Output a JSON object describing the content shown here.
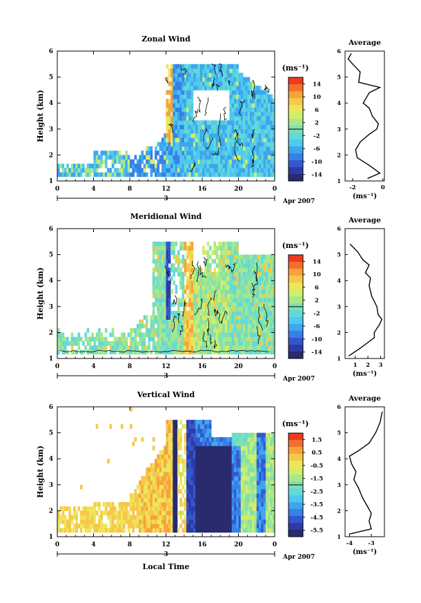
{
  "date_label": "Apr 2007",
  "date_axis_value": "3",
  "xlabel": "Local Time",
  "colorbar_unit": "(ms⁻¹)",
  "profile_title": "Average",
  "profile_unit": "(ms⁻¹)",
  "chart_data": [
    {
      "type": "heatmap",
      "title": "Zonal Wind",
      "ylabel": "Height (km)",
      "xlim": [
        0,
        24
      ],
      "ylim": [
        1,
        6
      ],
      "x_ticks": [
        "0",
        "4",
        "8",
        "12",
        "16",
        "20",
        "0"
      ],
      "y_ticks": [
        "1",
        "2",
        "3",
        "4",
        "5",
        "6"
      ],
      "colorbar": {
        "ticks": [
          "14",
          "10",
          "6",
          "2",
          "-2",
          "-6",
          "-10",
          "-14"
        ],
        "colors": [
          "#ee3b1f",
          "#f36f2c",
          "#f7a23a",
          "#f6c84b",
          "#eee55a",
          "#d2ed6a",
          "#a6e88a",
          "#7fe0b3",
          "#62d9d9",
          "#4fc8ee",
          "#3ea6ee",
          "#3780e6",
          "#3457cf",
          "#2f3aa4",
          "#2a2a6e"
        ]
      },
      "profile": {
        "xlim": [
          -2.5,
          0.1
        ],
        "x_ticks": [
          "-2",
          "0"
        ],
        "points": [
          [
            -1.0,
            1.1
          ],
          [
            -0.2,
            1.3
          ],
          [
            -0.9,
            1.6
          ],
          [
            -1.7,
            1.9
          ],
          [
            -1.8,
            2.2
          ],
          [
            -1.5,
            2.5
          ],
          [
            -0.9,
            2.8
          ],
          [
            -0.4,
            3.0
          ],
          [
            -0.3,
            3.2
          ],
          [
            -0.7,
            3.5
          ],
          [
            -0.9,
            3.8
          ],
          [
            -1.3,
            4.0
          ],
          [
            -0.9,
            4.4
          ],
          [
            -0.2,
            4.6
          ],
          [
            -1.6,
            4.8
          ],
          [
            -1.5,
            5.2
          ],
          [
            -2.0,
            5.5
          ],
          [
            -2.3,
            5.7
          ],
          [
            -2.1,
            5.9
          ]
        ]
      }
    },
    {
      "type": "heatmap",
      "title": "Meridional Wind",
      "ylabel": "Height (km)",
      "xlim": [
        0,
        24
      ],
      "ylim": [
        1,
        6
      ],
      "x_ticks": [
        "0",
        "4",
        "8",
        "12",
        "16",
        "20",
        "0"
      ],
      "y_ticks": [
        "1",
        "2",
        "3",
        "4",
        "5",
        "6"
      ],
      "colorbar": {
        "ticks": [
          "14",
          "10",
          "6",
          "2",
          "-2",
          "-6",
          "-10",
          "-14"
        ],
        "colors": [
          "#ee3b1f",
          "#f36f2c",
          "#f7a23a",
          "#f6c84b",
          "#eee55a",
          "#d2ed6a",
          "#a6e88a",
          "#7fe0b3",
          "#62d9d9",
          "#4fc8ee",
          "#3ea6ee",
          "#3780e6",
          "#3457cf",
          "#2f3aa4",
          "#2a2a6e"
        ]
      },
      "profile": {
        "xlim": [
          0.2,
          3.3
        ],
        "x_ticks": [
          "1",
          "2",
          "3"
        ],
        "points": [
          [
            0.5,
            1.1
          ],
          [
            1.4,
            1.4
          ],
          [
            2.5,
            1.8
          ],
          [
            2.5,
            2.0
          ],
          [
            2.9,
            2.3
          ],
          [
            3.1,
            2.5
          ],
          [
            2.8,
            2.7
          ],
          [
            2.7,
            3.0
          ],
          [
            2.3,
            3.4
          ],
          [
            2.1,
            3.8
          ],
          [
            2.2,
            4.1
          ],
          [
            1.8,
            4.3
          ],
          [
            2.1,
            4.6
          ],
          [
            1.6,
            4.8
          ],
          [
            1.2,
            5.1
          ],
          [
            0.6,
            5.4
          ]
        ]
      }
    },
    {
      "type": "heatmap",
      "title": "Vertical Wind",
      "ylabel": "Height (km)",
      "xlim": [
        0,
        24
      ],
      "ylim": [
        1,
        6
      ],
      "x_ticks": [
        "0",
        "4",
        "8",
        "12",
        "16",
        "20",
        "0"
      ],
      "y_ticks": [
        "1",
        "2",
        "3",
        "4",
        "5",
        "6"
      ],
      "colorbar": {
        "ticks": [
          "1.5",
          "0.5",
          "-0.5",
          "-1.5",
          "-2.5",
          "-3.5",
          "-4.5",
          "-5.5"
        ],
        "colors": [
          "#ee3b1f",
          "#f36f2c",
          "#f7a23a",
          "#f6c84b",
          "#eee55a",
          "#d2ed6a",
          "#a6e88a",
          "#7fe0b3",
          "#62d9d9",
          "#4fc8ee",
          "#3ea6ee",
          "#3780e6",
          "#3457cf",
          "#2f3aa4",
          "#2a2a6e"
        ]
      },
      "profile": {
        "xlim": [
          -4.2,
          -2.4
        ],
        "x_ticks": [
          "-4",
          "-3"
        ],
        "points": [
          [
            -4.0,
            1.1
          ],
          [
            -3.0,
            1.3
          ],
          [
            -3.1,
            1.6
          ],
          [
            -3.0,
            1.9
          ],
          [
            -3.2,
            2.2
          ],
          [
            -3.4,
            2.5
          ],
          [
            -3.6,
            2.9
          ],
          [
            -3.8,
            3.2
          ],
          [
            -3.7,
            3.5
          ],
          [
            -3.9,
            3.8
          ],
          [
            -4.0,
            4.1
          ],
          [
            -3.6,
            4.3
          ],
          [
            -3.1,
            4.6
          ],
          [
            -2.8,
            5.0
          ],
          [
            -2.6,
            5.4
          ],
          [
            -2.5,
            5.8
          ]
        ]
      }
    }
  ]
}
